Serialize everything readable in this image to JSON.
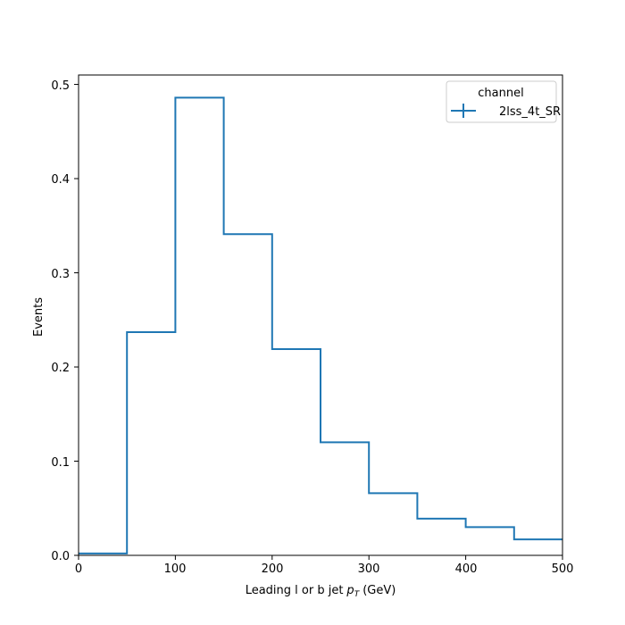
{
  "chart_data": {
    "type": "step",
    "title": "",
    "xlabel": "Leading l or b jet",
    "xlabel_symbol": "p",
    "xlabel_subscript": "T",
    "xlabel_unit": "(GeV)",
    "ylabel": "Events",
    "xlim": [
      0,
      500
    ],
    "ylim": [
      0,
      0.51
    ],
    "xticks": [
      "0",
      "100",
      "200",
      "300",
      "400",
      "500"
    ],
    "yticks": [
      "0.0",
      "0.1",
      "0.2",
      "0.3",
      "0.4",
      "0.5"
    ],
    "bin_edges": [
      0,
      50,
      100,
      150,
      200,
      250,
      300,
      350,
      400,
      450,
      500
    ],
    "grid": false,
    "legend": {
      "title": "channel",
      "placement": "top-right",
      "entries": [
        "2lss_4t_SR"
      ]
    },
    "series": [
      {
        "name": "2lss_4t_SR",
        "color": "#1f77b4",
        "values": [
          0.002,
          0.237,
          0.486,
          0.341,
          0.219,
          0.12,
          0.066,
          0.039,
          0.03,
          0.017
        ]
      }
    ]
  }
}
